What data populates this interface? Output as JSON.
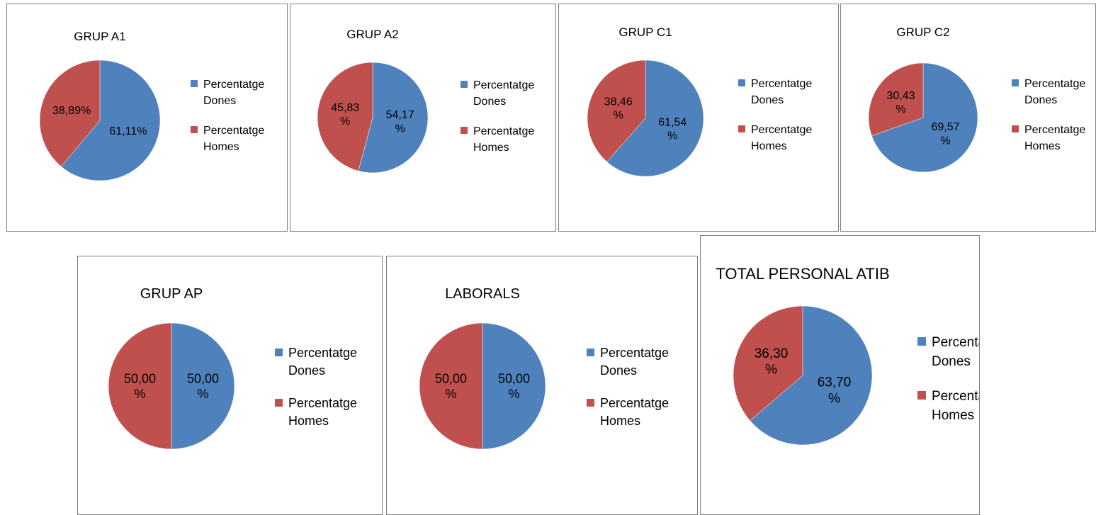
{
  "colors": {
    "dones": "#4F81BD",
    "homes": "#C0504D",
    "border": "#7f7f7f"
  },
  "chart_data": [
    {
      "type": "pie",
      "title": "GRUP A1",
      "categories": [
        "Percentatge Dones",
        "Percentatge Homes"
      ],
      "values": [
        61.11,
        38.89
      ],
      "labels": [
        "61,11%",
        "38,89%"
      ],
      "legend": "right"
    },
    {
      "type": "pie",
      "title": "GRUP A2",
      "categories": [
        "Percentatge Dones",
        "Percentatge Homes"
      ],
      "values": [
        54.17,
        45.83
      ],
      "labels": [
        "54,17 %",
        "45,83 %"
      ],
      "legend": "right"
    },
    {
      "type": "pie",
      "title": "GRUP C1",
      "categories": [
        "Percentatge Dones",
        "Percentatge Homes"
      ],
      "values": [
        61.54,
        38.46
      ],
      "labels": [
        "61,54 %",
        "38,46 %"
      ],
      "legend": "right"
    },
    {
      "type": "pie",
      "title": "GRUP C2",
      "categories": [
        "Percentatge Dones",
        "Percentatge Homes"
      ],
      "values": [
        69.57,
        30.43
      ],
      "labels": [
        "69,57 %",
        "30,43 %"
      ],
      "legend": "right"
    },
    {
      "type": "pie",
      "title": "GRUP AP",
      "categories": [
        "Percentatge Dones",
        "Percentatge Homes"
      ],
      "values": [
        50.0,
        50.0
      ],
      "labels": [
        "50,00 %",
        "50,00 %"
      ],
      "legend": "right"
    },
    {
      "type": "pie",
      "title": "LABORALS",
      "categories": [
        "Percentatge Dones",
        "Percentatge Homes"
      ],
      "values": [
        50.0,
        50.0
      ],
      "labels": [
        "50,00 %",
        "50,00 %"
      ],
      "legend": "right"
    },
    {
      "type": "pie",
      "title": "TOTAL PERSONAL ATIB",
      "categories": [
        "Percentatge Dones",
        "Percentatge Homes"
      ],
      "values": [
        63.7,
        36.3
      ],
      "labels": [
        "63,70 %",
        "36,30 %"
      ],
      "legend": "right"
    }
  ]
}
